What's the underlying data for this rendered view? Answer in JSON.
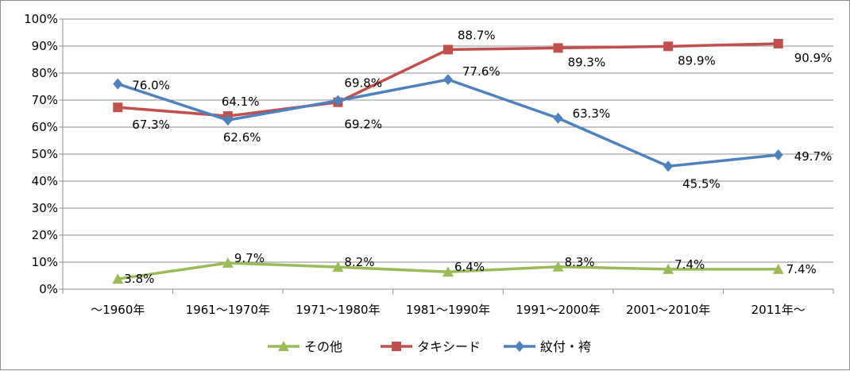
{
  "chart_data": {
    "type": "line",
    "title": "",
    "xlabel": "",
    "ylabel": "",
    "ylim": [
      0,
      100
    ],
    "y_ticks": [
      "0%",
      "10%",
      "20%",
      "30%",
      "40%",
      "50%",
      "60%",
      "70%",
      "80%",
      "90%",
      "100%"
    ],
    "grid": true,
    "legend_position": "bottom",
    "categories": [
      "～1960年",
      "1961～1970年",
      "1971～1980年",
      "1981～1990年",
      "1991～2000年",
      "2001～2010年",
      "2011年～"
    ],
    "series": [
      {
        "name": "その他",
        "color": "#9bbb59",
        "marker": "triangle",
        "values": [
          3.8,
          9.7,
          8.2,
          6.4,
          8.3,
          7.4,
          7.4
        ],
        "labels": [
          "3.8%",
          "9.7%",
          "8.2%",
          "6.4%",
          "8.3%",
          "7.4%",
          "7.4%"
        ]
      },
      {
        "name": "タキシード",
        "color": "#c0504d",
        "marker": "square",
        "values": [
          67.3,
          64.1,
          69.2,
          88.7,
          89.3,
          89.9,
          90.9
        ],
        "labels": [
          "67.3%",
          "64.1%",
          "69.2%",
          "88.7%",
          "89.3%",
          "89.9%",
          "90.9%"
        ]
      },
      {
        "name": "紋付・袴",
        "color": "#4f81bd",
        "marker": "diamond",
        "values": [
          76.0,
          62.6,
          69.8,
          77.6,
          63.3,
          45.5,
          49.7
        ],
        "labels": [
          "76.0%",
          "62.6%",
          "69.8%",
          "77.6%",
          "63.3%",
          "45.5%",
          "49.7%"
        ]
      }
    ]
  }
}
